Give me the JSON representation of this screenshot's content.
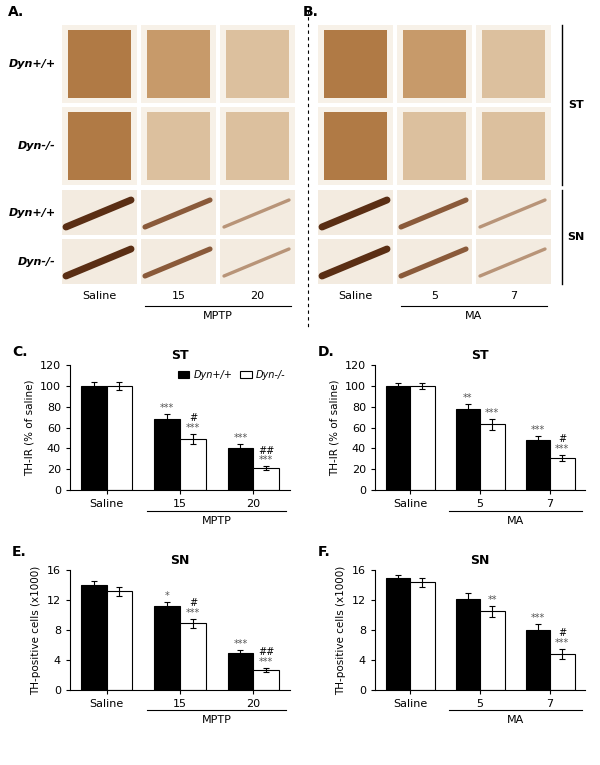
{
  "image_panels": [
    {
      "letter": "A.",
      "row_labels": [
        "Dyn+/+",
        "Dyn-/-",
        "Dyn+/+",
        "Dyn-/-"
      ],
      "columns": [
        "Saline",
        "15",
        "20"
      ],
      "group": {
        "label": "MPTP",
        "members": [
          "15",
          "20"
        ]
      }
    },
    {
      "letter": "B.",
      "columns": [
        "Saline",
        "5",
        "7"
      ],
      "group": {
        "label": "MA",
        "members": [
          "5",
          "7"
        ]
      }
    }
  ],
  "region_labels": [
    "ST",
    "SN"
  ],
  "chart_data": [
    {
      "type": "bar",
      "letter": "C.",
      "title": "ST",
      "y_label": "TH-IR (% of saline)",
      "categories": [
        "Saline",
        "15",
        "20"
      ],
      "group": {
        "label": "MPTP",
        "members": [
          "15",
          "20"
        ]
      },
      "ylim": [
        0,
        120
      ],
      "yticks": [
        0,
        20,
        40,
        60,
        80,
        100,
        120
      ],
      "legend": "upper right",
      "series": [
        {
          "name": "Dyn+/+",
          "color": "#000000",
          "values": [
            100,
            68,
            40
          ],
          "errors": [
            4,
            5,
            4
          ],
          "significance": [
            null,
            "***",
            "***"
          ]
        },
        {
          "name": "Dyn-/-",
          "color": "#ffffff",
          "values": [
            100,
            49,
            21
          ],
          "errors": [
            4,
            5,
            2
          ],
          "significance": [
            null,
            "***",
            "***"
          ],
          "comparison": [
            null,
            "#",
            "##"
          ]
        }
      ]
    },
    {
      "type": "bar",
      "letter": "D.",
      "title": "ST",
      "y_label": "TH-IR (% of saline)",
      "categories": [
        "Saline",
        "5",
        "7"
      ],
      "group": {
        "label": "MA",
        "members": [
          "5",
          "7"
        ]
      },
      "ylim": [
        0,
        120
      ],
      "yticks": [
        0,
        20,
        40,
        60,
        80,
        100,
        120
      ],
      "series": [
        {
          "name": "Dyn+/+",
          "color": "#000000",
          "values": [
            100,
            78,
            48
          ],
          "errors": [
            3,
            5,
            4
          ],
          "significance": [
            null,
            "**",
            "***"
          ]
        },
        {
          "name": "Dyn-/-",
          "color": "#ffffff",
          "values": [
            100,
            63,
            31
          ],
          "errors": [
            3,
            5,
            3
          ],
          "significance": [
            null,
            "***",
            "***"
          ],
          "comparison": [
            null,
            null,
            "#"
          ]
        }
      ]
    },
    {
      "type": "bar",
      "letter": "E.",
      "title": "SN",
      "y_label": "TH-positive cells (x1000)",
      "categories": [
        "Saline",
        "15",
        "20"
      ],
      "group": {
        "label": "MPTP",
        "members": [
          "15",
          "20"
        ]
      },
      "ylim": [
        0,
        16
      ],
      "yticks": [
        0,
        4,
        8,
        12,
        16
      ],
      "series": [
        {
          "name": "Dyn+/+",
          "color": "#000000",
          "values": [
            14.0,
            11.2,
            4.9
          ],
          "errors": [
            0.6,
            0.6,
            0.5
          ],
          "significance": [
            null,
            "*",
            "***"
          ]
        },
        {
          "name": "Dyn-/-",
          "color": "#ffffff",
          "values": [
            13.2,
            8.9,
            2.7
          ],
          "errors": [
            0.6,
            0.6,
            0.3
          ],
          "significance": [
            null,
            "***",
            "***"
          ],
          "comparison": [
            null,
            "#",
            "##"
          ]
        }
      ]
    },
    {
      "type": "bar",
      "letter": "F.",
      "title": "SN",
      "y_label": "TH-positive cells (x1000)",
      "categories": [
        "Saline",
        "5",
        "7"
      ],
      "group": {
        "label": "MA",
        "members": [
          "5",
          "7"
        ]
      },
      "ylim": [
        0,
        16
      ],
      "yticks": [
        0,
        4,
        8,
        12,
        16
      ],
      "series": [
        {
          "name": "Dyn+/+",
          "color": "#000000",
          "values": [
            14.9,
            12.1,
            8.0
          ],
          "errors": [
            0.4,
            0.8,
            0.8
          ],
          "significance": [
            null,
            null,
            "***"
          ]
        },
        {
          "name": "Dyn-/-",
          "color": "#ffffff",
          "values": [
            14.4,
            10.5,
            4.8
          ],
          "errors": [
            0.6,
            0.7,
            0.7
          ],
          "significance": [
            null,
            "**",
            "***"
          ],
          "comparison": [
            null,
            null,
            "#"
          ]
        }
      ]
    }
  ]
}
